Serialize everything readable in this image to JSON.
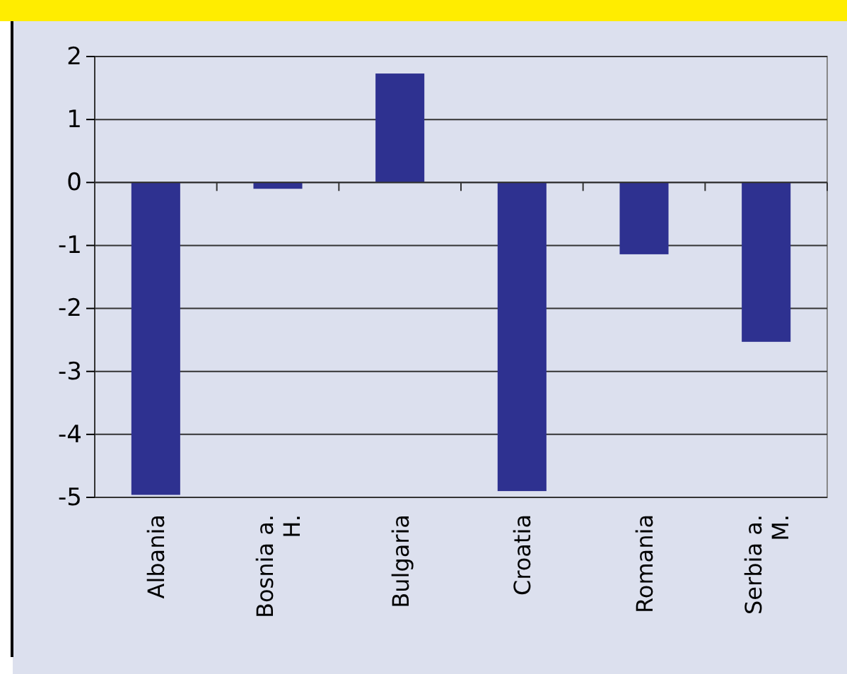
{
  "chart_data": {
    "type": "bar",
    "categories": [
      "Albania",
      "Bosnia a. H.",
      "Bulgaria",
      "Croatia",
      "Romania",
      "Serbia a. M."
    ],
    "values": [
      -4.96,
      -0.1,
      1.73,
      -4.9,
      -1.14,
      -2.53
    ],
    "color": "#2e3190",
    "ylim": [
      -5,
      2
    ],
    "yticks": [
      -5,
      -4,
      -3,
      -2,
      -1,
      0,
      1,
      2
    ],
    "grid": "y"
  }
}
